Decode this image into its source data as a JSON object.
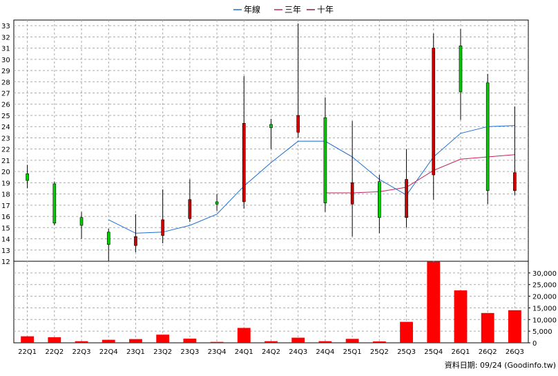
{
  "legend": [
    {
      "label": "年線",
      "color": "#1a6fd0"
    },
    {
      "label": "三年",
      "color": "#c8205a"
    },
    {
      "label": "十年",
      "color": "#8a1a4a"
    }
  ],
  "credit": "資料日期: 09/24  (Goodinfo.tw)",
  "chart_data": {
    "type": "candlestick",
    "categories": [
      "22Q1",
      "22Q2",
      "22Q3",
      "22Q4",
      "23Q1",
      "23Q2",
      "23Q3",
      "23Q4",
      "24Q1",
      "24Q2",
      "24Q3",
      "24Q4",
      "25Q1",
      "25Q2",
      "25Q3",
      "25Q4",
      "26Q1",
      "26Q2",
      "26Q3"
    ],
    "price_axis": {
      "ylim": [
        12,
        33.5
      ],
      "ticks": [
        12,
        13,
        14,
        15,
        16,
        17,
        18,
        19,
        20,
        21,
        22,
        23,
        24,
        25,
        26,
        27,
        28,
        29,
        30,
        31,
        32,
        33
      ]
    },
    "candles": [
      {
        "open": 19.2,
        "close": 19.8,
        "high": 20.6,
        "low": 18.5
      },
      {
        "open": 15.4,
        "close": 18.9,
        "high": 19.1,
        "low": 15.2
      },
      {
        "open": 15.2,
        "close": 15.9,
        "high": 16.4,
        "low": 14.0
      },
      {
        "open": 13.5,
        "close": 14.6,
        "high": 14.9,
        "low": 12.0
      },
      {
        "open": 14.2,
        "close": 13.4,
        "high": 16.2,
        "low": 12.8
      },
      {
        "open": 15.7,
        "close": 14.3,
        "high": 18.4,
        "low": 13.6
      },
      {
        "open": 17.5,
        "close": 15.8,
        "high": 19.3,
        "low": 15.5
      },
      {
        "open": 17.1,
        "close": 17.3,
        "high": 18.0,
        "low": 16.5
      },
      {
        "open": 24.3,
        "close": 17.3,
        "high": 28.5,
        "low": 16.7
      },
      {
        "open": 23.9,
        "close": 24.2,
        "high": 24.7,
        "low": 22.0
      },
      {
        "open": 25.0,
        "close": 23.5,
        "high": 33.2,
        "low": 23.0
      },
      {
        "open": 17.2,
        "close": 24.8,
        "high": 26.6,
        "low": 16.4
      },
      {
        "open": 19.0,
        "close": 17.1,
        "high": 24.5,
        "low": 14.2
      },
      {
        "open": 15.9,
        "close": 19.1,
        "high": 19.7,
        "low": 14.5
      },
      {
        "open": 19.3,
        "close": 15.9,
        "high": 22.0,
        "low": 15.0
      },
      {
        "open": 31.0,
        "close": 19.7,
        "high": 32.3,
        "low": 17.5
      },
      {
        "open": 27.1,
        "close": 31.2,
        "high": 32.7,
        "low": 24.6
      },
      {
        "open": 18.3,
        "close": 27.9,
        "high": 28.7,
        "low": 17.1
      },
      {
        "open": 19.9,
        "close": 18.3,
        "high": 25.8,
        "low": 17.9
      }
    ],
    "series": [
      {
        "name": "年線",
        "color": "#1a6fd0",
        "values": [
          null,
          null,
          null,
          15.7,
          14.5,
          14.6,
          15.2,
          16.2,
          18.7,
          20.8,
          22.7,
          22.7,
          21.3,
          19.3,
          17.9,
          21.3,
          23.4,
          24.0,
          24.1
        ]
      },
      {
        "name": "三年",
        "color": "#c8205a",
        "values": [
          null,
          null,
          null,
          null,
          null,
          null,
          null,
          null,
          null,
          null,
          null,
          18.1,
          18.1,
          18.2,
          18.6,
          20.1,
          21.1,
          21.3,
          21.5
        ]
      }
    ],
    "volume": {
      "ylim": [
        0,
        35000
      ],
      "ticks": [
        0,
        5000,
        10000,
        15000,
        20000,
        25000,
        30000
      ],
      "tick_labels": [
        "0",
        "5,000",
        "10,000",
        "15,000",
        "20,000",
        "25,000",
        "30,000"
      ],
      "values": [
        2800,
        2400,
        700,
        1300,
        1600,
        3500,
        1800,
        400,
        6400,
        700,
        2200,
        700,
        1700,
        600,
        9000,
        34800,
        22500,
        12800,
        14000
      ]
    }
  }
}
